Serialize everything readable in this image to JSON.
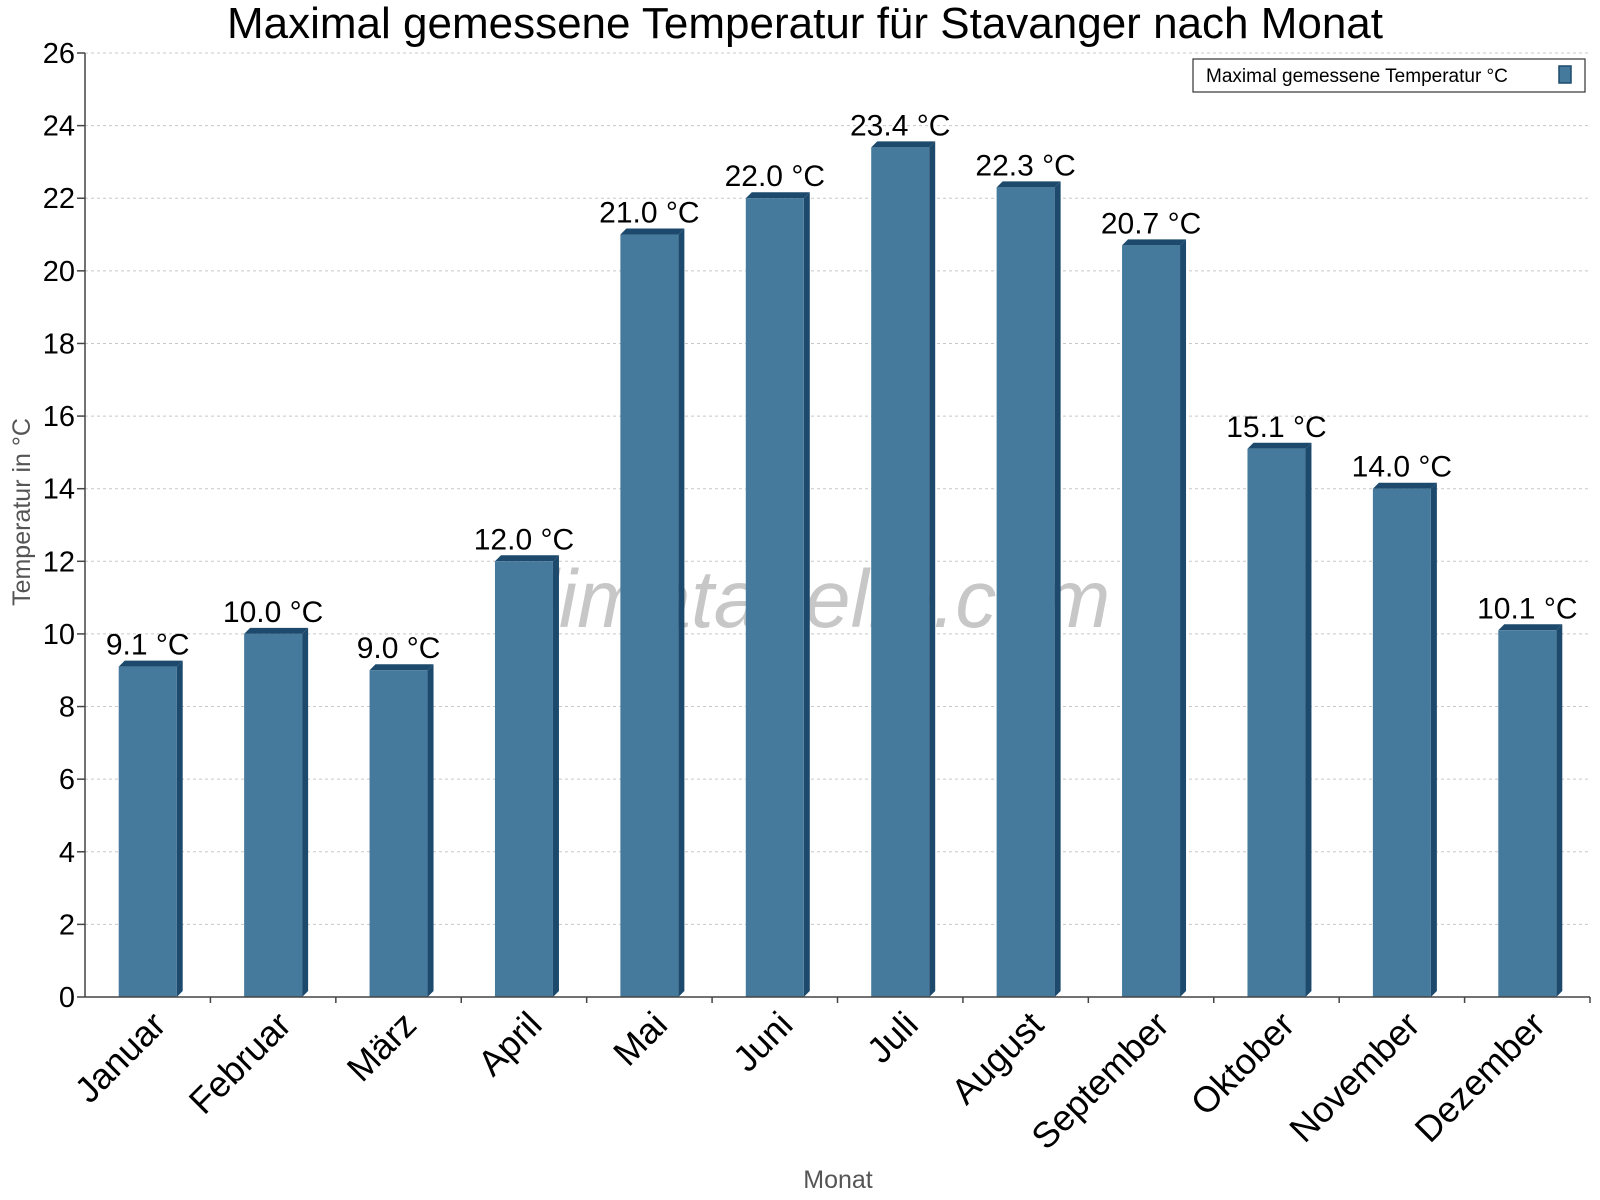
{
  "chart_data": {
    "type": "bar",
    "title": "Maximal gemessene Temperatur für Stavanger nach Monat",
    "xlabel": "Monat",
    "ylabel": "Temperatur in °C",
    "categories": [
      "Januar",
      "Februar",
      "März",
      "April",
      "Mai",
      "Juni",
      "Juli",
      "August",
      "September",
      "Oktober",
      "November",
      "Dezember"
    ],
    "series": [
      {
        "name": "Maximal gemessene Temperatur °C",
        "values": [
          9.1,
          10.0,
          9.0,
          12.0,
          21.0,
          22.0,
          23.4,
          22.3,
          20.7,
          15.1,
          14.0,
          10.1
        ],
        "labels": [
          "9.1 °C",
          "10.0 °C",
          "9.0 °C",
          "12.0 °C",
          "21.0 °C",
          "22.0 °C",
          "23.4 °C",
          "22.3 °C",
          "20.7 °C",
          "15.1 °C",
          "14.0 °C",
          "10.1 °C"
        ],
        "color": "#467a9c",
        "side_color": "#1d4a6c"
      }
    ],
    "ylim": [
      0,
      26
    ],
    "yticks": [
      0,
      2,
      4,
      6,
      8,
      10,
      12,
      14,
      16,
      18,
      20,
      22,
      24,
      26
    ],
    "grid": true,
    "legend": "top-right"
  },
  "watermark": "klimatabelle.com"
}
